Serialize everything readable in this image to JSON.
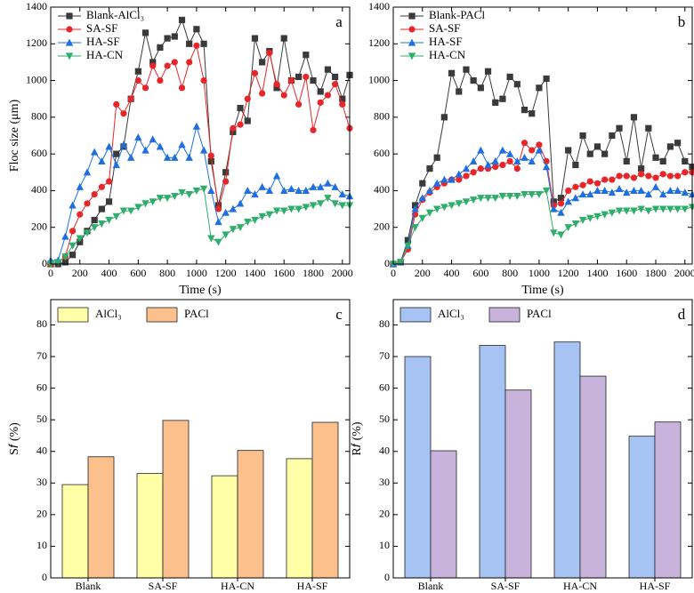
{
  "chart_data": [
    {
      "type": "line",
      "panel": "a",
      "x_label": "Time (s)",
      "y_label": "Floc size (μm)",
      "xlim": [
        0,
        2050
      ],
      "ylim": [
        0,
        1400
      ],
      "xticks": [
        0,
        200,
        400,
        600,
        800,
        1000,
        1200,
        1400,
        1600,
        1800,
        2000
      ],
      "yticks": [
        0,
        200,
        400,
        600,
        800,
        1000,
        1200,
        1400
      ],
      "legend": "upper left",
      "x": [
        0,
        50,
        100,
        150,
        200,
        250,
        300,
        350,
        400,
        450,
        500,
        550,
        600,
        650,
        700,
        750,
        800,
        850,
        900,
        950,
        1000,
        1050,
        1100,
        1150,
        1200,
        1250,
        1300,
        1350,
        1400,
        1450,
        1500,
        1550,
        1600,
        1650,
        1700,
        1750,
        1800,
        1850,
        1900,
        1950,
        2000,
        2050
      ],
      "series": [
        {
          "name": "Blank-AlCl₃",
          "color": "#3a3a3a",
          "marker": "square",
          "values": [
            0,
            0,
            10,
            50,
            120,
            180,
            240,
            300,
            340,
            600,
            640,
            900,
            1050,
            1260,
            1100,
            1180,
            1230,
            1240,
            1330,
            1200,
            1280,
            1200,
            560,
            320,
            500,
            720,
            850,
            780,
            1230,
            1100,
            1160,
            960,
            1230,
            1000,
            1020,
            1140,
            1000,
            940,
            1060,
            1020,
            900,
            1030
          ]
        },
        {
          "name": "SA-SF",
          "color": "#e8262a",
          "marker": "circle",
          "values": [
            0,
            10,
            40,
            180,
            270,
            330,
            380,
            420,
            450,
            870,
            820,
            900,
            1000,
            960,
            1080,
            1000,
            1080,
            1100,
            960,
            1100,
            1190,
            1000,
            590,
            300,
            450,
            740,
            760,
            900,
            1040,
            930,
            1150,
            980,
            920,
            1000,
            870,
            1020,
            730,
            880,
            920,
            980,
            870,
            740
          ]
        },
        {
          "name": "HA-SF",
          "color": "#1f6fe0",
          "marker": "triangle",
          "values": [
            20,
            20,
            150,
            320,
            420,
            500,
            610,
            560,
            640,
            540,
            650,
            580,
            690,
            620,
            680,
            640,
            580,
            580,
            650,
            580,
            750,
            620,
            400,
            230,
            280,
            300,
            330,
            400,
            380,
            420,
            400,
            480,
            400,
            410,
            400,
            400,
            420,
            420,
            440,
            420,
            380,
            370
          ]
        },
        {
          "name": "HA-CN",
          "color": "#2eae6a",
          "marker": "triangle-down",
          "values": [
            0,
            10,
            40,
            100,
            140,
            170,
            200,
            220,
            240,
            260,
            290,
            290,
            310,
            330,
            340,
            360,
            360,
            370,
            390,
            380,
            400,
            410,
            140,
            120,
            160,
            190,
            200,
            230,
            240,
            260,
            270,
            290,
            290,
            300,
            300,
            310,
            320,
            330,
            360,
            330,
            320,
            320
          ]
        }
      ]
    },
    {
      "type": "line",
      "panel": "b",
      "x_label": "Time (s)",
      "xlim": [
        0,
        2050
      ],
      "ylim": [
        0,
        1400
      ],
      "xticks": [
        0,
        200,
        400,
        600,
        800,
        1000,
        1200,
        1400,
        1600,
        1800,
        2000
      ],
      "yticks": [
        0,
        200,
        400,
        600,
        800,
        1000,
        1200,
        1400
      ],
      "legend": "upper left",
      "x": [
        0,
        50,
        100,
        150,
        200,
        250,
        300,
        350,
        400,
        450,
        500,
        550,
        600,
        650,
        700,
        750,
        800,
        850,
        900,
        950,
        1000,
        1050,
        1100,
        1150,
        1200,
        1250,
        1300,
        1350,
        1400,
        1450,
        1500,
        1550,
        1600,
        1650,
        1700,
        1750,
        1800,
        1850,
        1900,
        1950,
        2000,
        2050
      ],
      "series": [
        {
          "name": "Blank-PACl",
          "color": "#3a3a3a",
          "marker": "square",
          "values": [
            0,
            10,
            130,
            320,
            440,
            520,
            580,
            800,
            1040,
            940,
            1060,
            1000,
            960,
            1050,
            880,
            900,
            1020,
            980,
            840,
            820,
            960,
            1010,
            340,
            360,
            620,
            540,
            700,
            600,
            640,
            600,
            700,
            740,
            560,
            800,
            520,
            740,
            580,
            560,
            640,
            660,
            560,
            530
          ]
        },
        {
          "name": "SA-SF",
          "color": "#e8262a",
          "marker": "circle",
          "values": [
            0,
            10,
            80,
            270,
            350,
            390,
            420,
            440,
            460,
            460,
            480,
            500,
            520,
            520,
            530,
            540,
            560,
            520,
            660,
            620,
            650,
            560,
            320,
            330,
            400,
            420,
            430,
            450,
            440,
            460,
            460,
            480,
            480,
            470,
            490,
            480,
            470,
            490,
            480,
            480,
            500,
            500
          ]
        },
        {
          "name": "HA-SF",
          "color": "#1f6fe0",
          "marker": "triangle",
          "values": [
            0,
            10,
            100,
            300,
            360,
            400,
            440,
            460,
            460,
            490,
            520,
            560,
            620,
            540,
            560,
            620,
            600,
            560,
            580,
            560,
            620,
            530,
            300,
            280,
            340,
            360,
            380,
            380,
            400,
            400,
            390,
            410,
            390,
            400,
            400,
            380,
            420,
            380,
            400,
            400,
            390,
            380
          ]
        },
        {
          "name": "HA-CN",
          "color": "#2eae6a",
          "marker": "triangle-down",
          "values": [
            0,
            10,
            100,
            200,
            250,
            280,
            300,
            310,
            320,
            330,
            340,
            350,
            360,
            360,
            360,
            370,
            370,
            370,
            380,
            380,
            380,
            400,
            170,
            160,
            200,
            220,
            240,
            250,
            260,
            270,
            280,
            290,
            290,
            290,
            300,
            290,
            300,
            300,
            300,
            300,
            300,
            310
          ]
        }
      ]
    },
    {
      "type": "bar",
      "panel": "c",
      "y_label": "S𝑓 (%)",
      "ylim": [
        0,
        88
      ],
      "yticks": [
        0,
        10,
        20,
        30,
        40,
        50,
        60,
        70,
        80
      ],
      "legend": "upper left",
      "categories": [
        "Blank",
        "SA-SF",
        "HA-CN",
        "HA-SF"
      ],
      "series": [
        {
          "name": "AlCl₃",
          "color": "#ffffa8",
          "values": [
            29.5,
            33,
            32.3,
            37.7
          ]
        },
        {
          "name": "PACl",
          "color": "#fbc08c",
          "values": [
            38.3,
            49.8,
            40.3,
            49.2
          ]
        }
      ]
    },
    {
      "type": "bar",
      "panel": "d",
      "y_label": "R𝑓 (%)",
      "ylim": [
        0,
        88
      ],
      "yticks": [
        0,
        10,
        20,
        30,
        40,
        50,
        60,
        70,
        80
      ],
      "legend": "upper left",
      "categories": [
        "Blank",
        "SA-SF",
        "HA-CN",
        "HA-SF"
      ],
      "series": [
        {
          "name": "AlCl₃",
          "color": "#a6c3f4",
          "values": [
            70,
            73.5,
            74.6,
            44.8
          ]
        },
        {
          "name": "PACl",
          "color": "#c8b3dc",
          "values": [
            40.2,
            59.4,
            63.8,
            49.3
          ]
        }
      ]
    }
  ]
}
